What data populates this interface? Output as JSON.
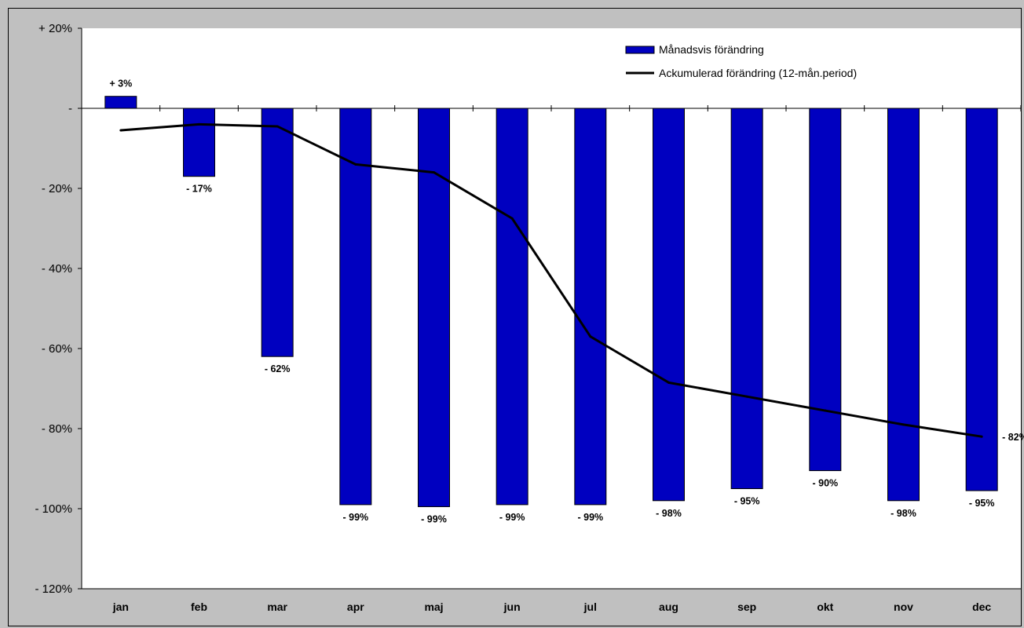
{
  "chart_data": {
    "type": "bar",
    "categories": [
      "jan",
      "feb",
      "mar",
      "apr",
      "maj",
      "jun",
      "jul",
      "aug",
      "sep",
      "okt",
      "nov",
      "dec"
    ],
    "series": [
      {
        "name": "Månadsvis förändring",
        "kind": "bar",
        "color": "#0000c0",
        "values": [
          3,
          -17,
          -62,
          -99,
          -99.5,
          -99,
          -99,
          -98,
          -95,
          -90.5,
          -98,
          -95.5
        ],
        "labels": [
          "+ 3%",
          "- 17%",
          "- 62%",
          "- 99%",
          "- 99%",
          "- 99%",
          "- 99%",
          "- 98%",
          "- 95%",
          "- 90%",
          "- 98%",
          "- 95%"
        ]
      },
      {
        "name": "Ackumulerad förändring (12-mån.period)",
        "kind": "line",
        "color": "#000000",
        "values": [
          -5.5,
          -4,
          -4.5,
          -14,
          -16,
          -27.5,
          -57,
          -68.5,
          -72,
          -75.5,
          -79,
          -82
        ],
        "end_label": "- 82%"
      }
    ],
    "ylim": [
      -120,
      20
    ],
    "y_ticks": [
      {
        "value": 20,
        "label": "+ 20%"
      },
      {
        "value": 0,
        "label": "-"
      },
      {
        "value": -20,
        "label": "- 20%"
      },
      {
        "value": -40,
        "label": "- 40%"
      },
      {
        "value": -60,
        "label": "- 60%"
      },
      {
        "value": -80,
        "label": "- 80%"
      },
      {
        "value": -100,
        "label": "- 100%"
      },
      {
        "value": -120,
        "label": "- 120%"
      }
    ],
    "grid": false,
    "legend_position": "top-right",
    "title": "",
    "xlabel": "",
    "ylabel": ""
  }
}
